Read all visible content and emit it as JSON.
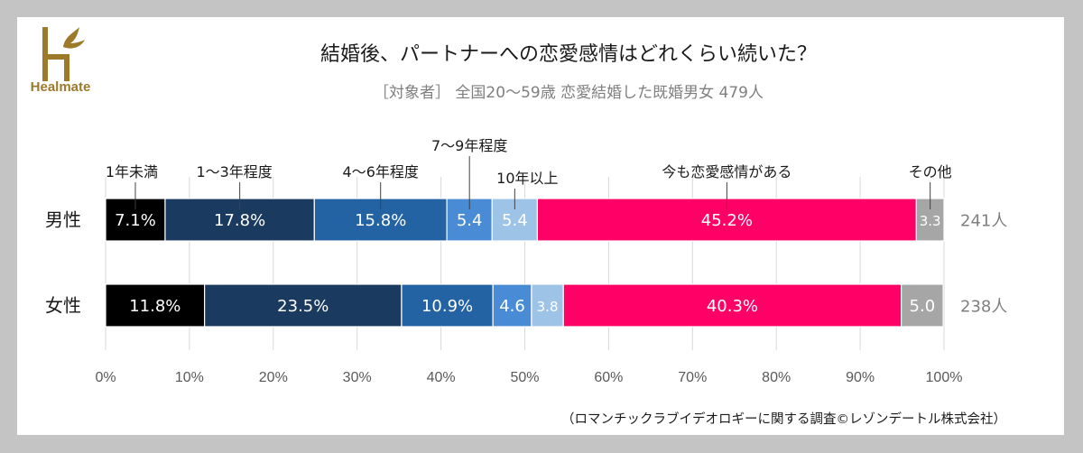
{
  "brand": {
    "name": "Healmate",
    "color": "#9c7a2a"
  },
  "title": "結婚後、パートナーへの恋愛感情はどれくらい続いた？",
  "subtitle": "［対象者］ 全国20～59歳 恋愛結婚した既婚男女 479人",
  "source": "（ロマンチックラブイデオロギーに関する調査©レゾンデートル株式会社）",
  "chart_data": {
    "type": "bar",
    "orientation": "horizontal-stacked-100",
    "title": "結婚後、パートナーへの恋愛感情はどれくらい続いた？",
    "xlim": [
      0,
      100
    ],
    "grid": true,
    "x_ticks": [
      "0%",
      "10%",
      "20%",
      "30%",
      "40%",
      "50%",
      "60%",
      "70%",
      "80%",
      "90%",
      "100%"
    ],
    "categories": [
      "男性",
      "女性"
    ],
    "totals": [
      "241人",
      "238人"
    ],
    "series": [
      {
        "name": "1年未満",
        "color": "#000000",
        "values": [
          7.1,
          11.8
        ],
        "labels": [
          "7.1%",
          "11.8%"
        ],
        "text_color": "#ffffff"
      },
      {
        "name": "1～3年程度",
        "color": "#1b3a5f",
        "values": [
          17.8,
          23.5
        ],
        "labels": [
          "17.8%",
          "23.5%"
        ],
        "text_color": "#ffffff"
      },
      {
        "name": "4～6年程度",
        "color": "#2363a3",
        "values": [
          15.8,
          10.9
        ],
        "labels": [
          "15.8%",
          "10.9%"
        ],
        "text_color": "#ffffff"
      },
      {
        "name": "7～9年程度",
        "color": "#4a8bd5",
        "values": [
          5.4,
          4.6
        ],
        "labels": [
          "5.4",
          "4.6"
        ],
        "text_color": "#ffffff"
      },
      {
        "name": "10年以上",
        "color": "#9dc3e6",
        "values": [
          5.4,
          3.8
        ],
        "labels": [
          "5.4",
          "3.8"
        ],
        "text_color": "#ffffff"
      },
      {
        "name": "今も恋愛感情がある",
        "color": "#ff0066",
        "values": [
          45.2,
          40.3
        ],
        "labels": [
          "45.2%",
          "40.3%"
        ],
        "text_color": "#ffffff"
      },
      {
        "name": "その他",
        "color": "#a6a6a6",
        "values": [
          3.3,
          5.0
        ],
        "labels": [
          "3.3",
          "5.0"
        ],
        "text_color": "#ffffff"
      }
    ]
  }
}
